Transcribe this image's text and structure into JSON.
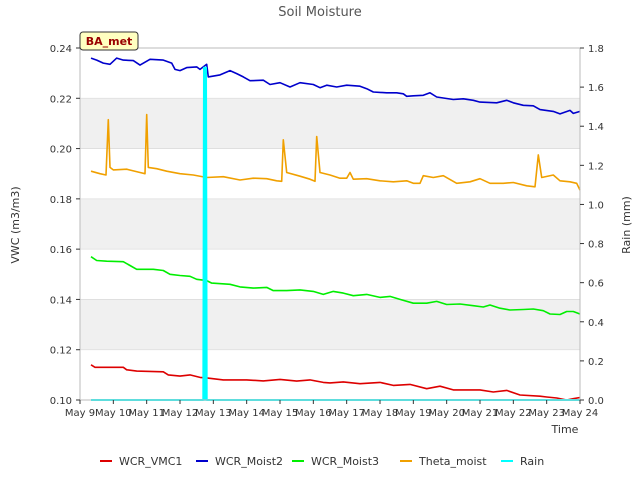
{
  "chart_data": {
    "type": "line",
    "title": "Soil Moisture",
    "xlabel": "Time",
    "ylabel": "VWC (m3/m3)",
    "y2label": "Rain (mm)",
    "station_label": "BA_met",
    "x_ticks": [
      "May 9",
      "May 10",
      "May 11",
      "May 12",
      "May 13",
      "May 14",
      "May 15",
      "May 16",
      "May 17",
      "May 18",
      "May 19",
      "May 20",
      "May 21",
      "May 22",
      "May 23",
      "May 24"
    ],
    "xlim": [
      0,
      15
    ],
    "ylim": [
      0.1,
      0.24
    ],
    "y_ticks": [
      "0.10",
      "0.12",
      "0.14",
      "0.16",
      "0.18",
      "0.20",
      "0.22",
      "0.24"
    ],
    "y2lim": [
      0.0,
      1.8
    ],
    "y2_ticks": [
      "0.0",
      "0.2",
      "0.4",
      "0.6",
      "0.8",
      "1.0",
      "1.2",
      "1.4",
      "1.6",
      "1.8"
    ],
    "grid_bands": true,
    "legend_position": "bottom",
    "series": [
      {
        "name": "WCR_VMC1",
        "color": "#dd0000",
        "axis": "left",
        "points": [
          [
            0.33,
            0.114
          ],
          [
            0.45,
            0.113
          ],
          [
            1.3,
            0.113
          ],
          [
            1.4,
            0.112
          ],
          [
            1.7,
            0.1115
          ],
          [
            2.5,
            0.1112
          ],
          [
            2.65,
            0.11
          ],
          [
            3.0,
            0.1095
          ],
          [
            3.3,
            0.11
          ],
          [
            3.6,
            0.109
          ],
          [
            3.8,
            0.1088
          ],
          [
            4.3,
            0.108
          ],
          [
            5.0,
            0.108
          ],
          [
            5.5,
            0.1076
          ],
          [
            6.0,
            0.1082
          ],
          [
            6.5,
            0.1075
          ],
          [
            6.9,
            0.108
          ],
          [
            7.3,
            0.107
          ],
          [
            7.5,
            0.1068
          ],
          [
            7.9,
            0.1072
          ],
          [
            8.4,
            0.1065
          ],
          [
            9.0,
            0.107
          ],
          [
            9.4,
            0.1058
          ],
          [
            9.9,
            0.1062
          ],
          [
            10.4,
            0.1045
          ],
          [
            10.8,
            0.1055
          ],
          [
            11.2,
            0.104
          ],
          [
            12.0,
            0.104
          ],
          [
            12.4,
            0.1032
          ],
          [
            12.8,
            0.1038
          ],
          [
            13.2,
            0.102
          ],
          [
            13.8,
            0.1015
          ],
          [
            14.0,
            0.1012
          ],
          [
            14.3,
            0.1008
          ],
          [
            14.6,
            0.1
          ],
          [
            14.8,
            0.1005
          ],
          [
            15.0,
            0.101
          ]
        ]
      },
      {
        "name": "WCR_Moist2",
        "color": "#0000cc",
        "axis": "left",
        "points": [
          [
            0.33,
            0.236
          ],
          [
            0.5,
            0.2352
          ],
          [
            0.7,
            0.234
          ],
          [
            0.9,
            0.2335
          ],
          [
            1.1,
            0.236
          ],
          [
            1.3,
            0.2352
          ],
          [
            1.6,
            0.235
          ],
          [
            1.8,
            0.2332
          ],
          [
            2.1,
            0.2355
          ],
          [
            2.5,
            0.2352
          ],
          [
            2.75,
            0.234
          ],
          [
            2.85,
            0.2315
          ],
          [
            3.0,
            0.231
          ],
          [
            3.2,
            0.2322
          ],
          [
            3.5,
            0.2325
          ],
          [
            3.6,
            0.2315
          ],
          [
            3.8,
            0.2335
          ],
          [
            3.85,
            0.2285
          ],
          [
            4.2,
            0.2293
          ],
          [
            4.5,
            0.231
          ],
          [
            4.7,
            0.2298
          ],
          [
            4.9,
            0.2285
          ],
          [
            5.1,
            0.227
          ],
          [
            5.5,
            0.2272
          ],
          [
            5.7,
            0.2255
          ],
          [
            6.0,
            0.2262
          ],
          [
            6.3,
            0.2245
          ],
          [
            6.6,
            0.2262
          ],
          [
            7.0,
            0.2255
          ],
          [
            7.2,
            0.2242
          ],
          [
            7.4,
            0.2252
          ],
          [
            7.7,
            0.2245
          ],
          [
            8.0,
            0.2252
          ],
          [
            8.4,
            0.2248
          ],
          [
            8.6,
            0.2238
          ],
          [
            8.8,
            0.2225
          ],
          [
            9.2,
            0.2222
          ],
          [
            9.5,
            0.2222
          ],
          [
            9.7,
            0.2218
          ],
          [
            9.8,
            0.2208
          ],
          [
            10.0,
            0.221
          ],
          [
            10.3,
            0.2212
          ],
          [
            10.5,
            0.2222
          ],
          [
            10.7,
            0.2205
          ],
          [
            11.2,
            0.2195
          ],
          [
            11.5,
            0.2198
          ],
          [
            11.8,
            0.2192
          ],
          [
            12.0,
            0.2185
          ],
          [
            12.5,
            0.2182
          ],
          [
            12.8,
            0.2192
          ],
          [
            13.0,
            0.2182
          ],
          [
            13.3,
            0.2172
          ],
          [
            13.6,
            0.217
          ],
          [
            13.8,
            0.2155
          ],
          [
            14.2,
            0.2148
          ],
          [
            14.4,
            0.2138
          ],
          [
            14.7,
            0.2152
          ],
          [
            14.8,
            0.214
          ],
          [
            15.0,
            0.2148
          ]
        ]
      },
      {
        "name": "WCR_Moist3",
        "color": "#00ee00",
        "axis": "left",
        "points": [
          [
            0.33,
            0.157
          ],
          [
            0.5,
            0.1555
          ],
          [
            0.8,
            0.1552
          ],
          [
            1.3,
            0.155
          ],
          [
            1.5,
            0.1535
          ],
          [
            1.7,
            0.152
          ],
          [
            2.2,
            0.152
          ],
          [
            2.5,
            0.1515
          ],
          [
            2.7,
            0.15
          ],
          [
            3.0,
            0.1495
          ],
          [
            3.3,
            0.1492
          ],
          [
            3.5,
            0.148
          ],
          [
            3.8,
            0.1475
          ],
          [
            3.95,
            0.1465
          ],
          [
            4.5,
            0.146
          ],
          [
            4.8,
            0.145
          ],
          [
            5.2,
            0.1445
          ],
          [
            5.6,
            0.1448
          ],
          [
            5.8,
            0.1435
          ],
          [
            6.2,
            0.1435
          ],
          [
            6.6,
            0.1438
          ],
          [
            7.0,
            0.1432
          ],
          [
            7.3,
            0.142
          ],
          [
            7.6,
            0.1432
          ],
          [
            7.9,
            0.1425
          ],
          [
            8.2,
            0.1415
          ],
          [
            8.6,
            0.142
          ],
          [
            9.0,
            0.1408
          ],
          [
            9.3,
            0.1412
          ],
          [
            9.6,
            0.14
          ],
          [
            10.0,
            0.1385
          ],
          [
            10.4,
            0.1385
          ],
          [
            10.7,
            0.1392
          ],
          [
            11.0,
            0.138
          ],
          [
            11.4,
            0.1382
          ],
          [
            11.8,
            0.1375
          ],
          [
            12.1,
            0.137
          ],
          [
            12.3,
            0.1378
          ],
          [
            12.6,
            0.1365
          ],
          [
            12.9,
            0.1358
          ],
          [
            13.3,
            0.136
          ],
          [
            13.6,
            0.1362
          ],
          [
            13.9,
            0.1355
          ],
          [
            14.1,
            0.1342
          ],
          [
            14.4,
            0.134
          ],
          [
            14.6,
            0.1352
          ],
          [
            14.8,
            0.1352
          ],
          [
            15.0,
            0.1342
          ]
        ]
      },
      {
        "name": "Theta_moist",
        "color": "#f0a000",
        "axis": "left",
        "points": [
          [
            0.33,
            0.191
          ],
          [
            0.6,
            0.19
          ],
          [
            0.78,
            0.1895
          ],
          [
            0.85,
            0.2115
          ],
          [
            0.9,
            0.1925
          ],
          [
            1.0,
            0.1915
          ],
          [
            1.4,
            0.1918
          ],
          [
            1.8,
            0.1905
          ],
          [
            1.95,
            0.19
          ],
          [
            2.0,
            0.2135
          ],
          [
            2.05,
            0.1925
          ],
          [
            2.3,
            0.192
          ],
          [
            2.6,
            0.191
          ],
          [
            3.0,
            0.19
          ],
          [
            3.4,
            0.1895
          ],
          [
            3.8,
            0.1885
          ],
          [
            4.3,
            0.1888
          ],
          [
            4.8,
            0.1875
          ],
          [
            5.2,
            0.1882
          ],
          [
            5.6,
            0.188
          ],
          [
            5.9,
            0.1872
          ],
          [
            6.05,
            0.187
          ],
          [
            6.1,
            0.2035
          ],
          [
            6.2,
            0.1905
          ],
          [
            6.6,
            0.189
          ],
          [
            6.9,
            0.1878
          ],
          [
            7.05,
            0.187
          ],
          [
            7.1,
            0.2048
          ],
          [
            7.2,
            0.1905
          ],
          [
            7.5,
            0.1895
          ],
          [
            7.8,
            0.1882
          ],
          [
            8.0,
            0.1882
          ],
          [
            8.1,
            0.1905
          ],
          [
            8.2,
            0.1878
          ],
          [
            8.6,
            0.188
          ],
          [
            9.0,
            0.1872
          ],
          [
            9.4,
            0.1868
          ],
          [
            9.8,
            0.1872
          ],
          [
            10.0,
            0.1862
          ],
          [
            10.2,
            0.1862
          ],
          [
            10.3,
            0.1892
          ],
          [
            10.6,
            0.1885
          ],
          [
            10.9,
            0.1892
          ],
          [
            11.3,
            0.1862
          ],
          [
            11.7,
            0.1868
          ],
          [
            12.0,
            0.188
          ],
          [
            12.3,
            0.1862
          ],
          [
            12.7,
            0.1862
          ],
          [
            13.0,
            0.1865
          ],
          [
            13.4,
            0.1852
          ],
          [
            13.65,
            0.1848
          ],
          [
            13.75,
            0.1975
          ],
          [
            13.85,
            0.1885
          ],
          [
            14.2,
            0.1895
          ],
          [
            14.4,
            0.1872
          ],
          [
            14.7,
            0.1868
          ],
          [
            14.9,
            0.1862
          ],
          [
            15.0,
            0.1835
          ]
        ]
      },
      {
        "name": "Rain",
        "color": "#00ffff",
        "axis": "right",
        "points": [
          [
            0.33,
            0.0
          ],
          [
            3.7,
            0.0
          ],
          [
            3.72,
            1.7
          ],
          [
            3.75,
            0.0
          ],
          [
            3.78,
            1.7
          ],
          [
            3.8,
            0.0
          ],
          [
            15.0,
            0.0
          ]
        ]
      }
    ]
  }
}
